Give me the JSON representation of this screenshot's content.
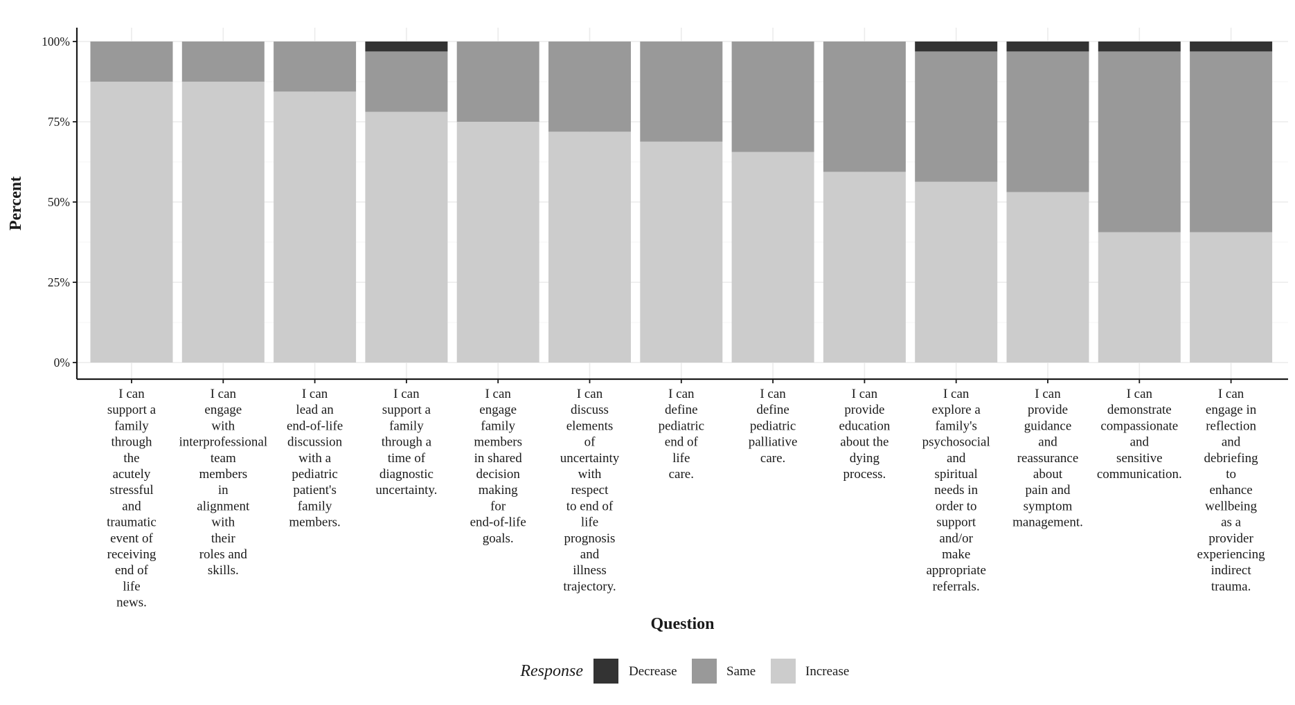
{
  "chart_data": {
    "type": "bar",
    "stacked": true,
    "xlabel": "Question",
    "ylabel": "Percent",
    "ylim": [
      0,
      1
    ],
    "yticks": [
      "0%",
      "25%",
      "50%",
      "75%",
      "100%"
    ],
    "grid": true,
    "legend": {
      "title": "Response",
      "position": "bottom",
      "entries": [
        "Decrease",
        "Same",
        "Increase"
      ]
    },
    "colors": {
      "Decrease": "#333333",
      "Same": "#999999",
      "Increase": "#cccccc"
    },
    "categories": [
      [
        "I can",
        "support a",
        "family",
        "through",
        "the",
        "acutely",
        "stressful",
        "and",
        "traumatic",
        "event of",
        "receiving",
        "end of",
        "life",
        "news."
      ],
      [
        "I can",
        "engage",
        "with",
        "interprofessional",
        "team",
        "members",
        "in",
        "alignment",
        "with",
        "their",
        "roles and",
        "skills."
      ],
      [
        "I can",
        "lead an",
        "end-of-life",
        "discussion",
        "with a",
        "pediatric",
        "patient's",
        "family",
        "members."
      ],
      [
        "I can",
        "support a",
        "family",
        "through a",
        "time of",
        "diagnostic",
        "uncertainty."
      ],
      [
        "I can",
        "engage",
        "family",
        "members",
        "in shared",
        "decision",
        "making",
        "for",
        "end-of-life",
        "goals."
      ],
      [
        "I can",
        "discuss",
        "elements",
        "of",
        "uncertainty",
        "with",
        "respect",
        "to end of",
        "life",
        "prognosis",
        "and",
        "illness",
        "trajectory."
      ],
      [
        "I can",
        "define",
        "pediatric",
        "end of",
        "life",
        "care."
      ],
      [
        "I can",
        "define",
        "pediatric",
        "palliative",
        "care."
      ],
      [
        "I can",
        "provide",
        "education",
        "about the",
        "dying",
        "process."
      ],
      [
        "I can",
        "explore a",
        "family's",
        "psychosocial",
        "and",
        "spiritual",
        "needs in",
        "order to",
        "support",
        "and/or",
        "make",
        "appropriate",
        "referrals."
      ],
      [
        "I can",
        "provide",
        "guidance",
        "and",
        "reassurance",
        "about",
        "pain and",
        "symptom",
        "management."
      ],
      [
        "I can",
        "demonstrate",
        "compassionate",
        "and",
        "sensitive",
        "communication."
      ],
      [
        "I can",
        "engage in",
        "reflection",
        "and",
        "debriefing",
        "to",
        "enhance",
        "wellbeing",
        "as a",
        "provider",
        "experiencing",
        "indirect",
        "trauma."
      ]
    ],
    "series": [
      {
        "name": "Increase",
        "values": [
          0.875,
          0.875,
          0.844,
          0.781,
          0.75,
          0.719,
          0.688,
          0.656,
          0.594,
          0.563,
          0.531,
          0.406,
          0.406
        ]
      },
      {
        "name": "Same",
        "values": [
          0.125,
          0.125,
          0.156,
          0.188,
          0.25,
          0.281,
          0.312,
          0.344,
          0.406,
          0.406,
          0.438,
          0.563,
          0.563
        ]
      },
      {
        "name": "Decrease",
        "values": [
          0,
          0,
          0,
          0.031,
          0,
          0,
          0,
          0,
          0,
          0.031,
          0.031,
          0.031,
          0.031
        ]
      }
    ]
  }
}
